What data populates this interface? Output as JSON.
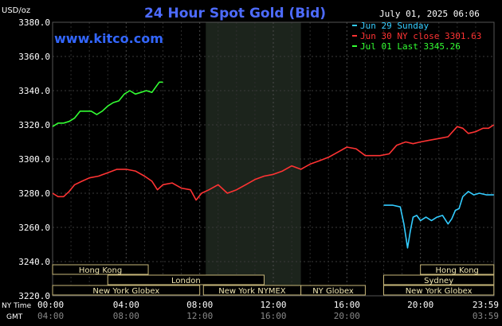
{
  "chart_data": {
    "type": "line",
    "title": "24 Hour Spot Gold (Bid)",
    "watermark": "www.kitco.com",
    "timestamp": "July 01, 2025 06:06",
    "ylabel": "USD/oz",
    "ylim": [
      3220,
      3380
    ],
    "yticks": [
      "3380.0",
      "3360.0",
      "3340.0",
      "3320.0",
      "3300.0",
      "3280.0",
      "3260.0",
      "3240.0",
      "3220.0"
    ],
    "xlim_hours": [
      0,
      24
    ],
    "xticks_ny": [
      "00:00",
      "04:00",
      "08:00",
      "12:00",
      "16:00",
      "20:00",
      "23:59"
    ],
    "xticks_gmt": [
      "04:00",
      "08:00",
      "12:00",
      "16:00",
      "20:00",
      "",
      "03:59"
    ],
    "ny_time_label": "NY Time",
    "gmt_label": "GMT",
    "grid": true,
    "shaded_hours": [
      8.33,
      13.5
    ],
    "legend": [
      {
        "label": "Jun 29 Sunday",
        "color": "#33ccff"
      },
      {
        "label": "Jun 30 NY close 3301.63",
        "color": "#ff3333"
      },
      {
        "label": "Jul 01 Last 3345.26",
        "color": "#33ff33"
      }
    ],
    "series": [
      {
        "name": "Jun 29 Sunday",
        "color": "#33ccff",
        "x": [
          18.0,
          18.5,
          18.9,
          19.1,
          19.3,
          19.45,
          19.6,
          19.8,
          20.0,
          20.3,
          20.6,
          20.9,
          21.2,
          21.5,
          21.7,
          21.9,
          22.1,
          22.3,
          22.6,
          22.9,
          23.2,
          23.6,
          23.99
        ],
        "values": [
          3273,
          3273,
          3272,
          3262,
          3248,
          3258,
          3266,
          3267,
          3264,
          3266,
          3264,
          3266,
          3267,
          3262,
          3265,
          3270,
          3271,
          3278,
          3281,
          3279,
          3280,
          3279,
          3279
        ]
      },
      {
        "name": "Jun 30 NY close 3301.63",
        "color": "#ff3333",
        "x": [
          0,
          0.3,
          0.6,
          0.9,
          1.2,
          1.6,
          2.0,
          2.5,
          3.0,
          3.5,
          4.0,
          4.5,
          5.0,
          5.4,
          5.7,
          6.0,
          6.5,
          7.0,
          7.5,
          7.8,
          8.1,
          8.5,
          9.0,
          9.5,
          10.0,
          10.5,
          11.0,
          11.5,
          12.0,
          12.5,
          13.0,
          13.5,
          14.0,
          14.5,
          15.0,
          15.5,
          16.0,
          16.5,
          17.0,
          17.4,
          17.8,
          18.3,
          18.7,
          19.2,
          19.6,
          20.0,
          20.5,
          21.0,
          21.5,
          22.0,
          22.3,
          22.6,
          23.0,
          23.4,
          23.7,
          23.99
        ],
        "values": [
          3280,
          3278,
          3278,
          3281,
          3285,
          3287,
          3289,
          3290,
          3292,
          3294,
          3294,
          3293,
          3290,
          3287,
          3282,
          3285,
          3286,
          3283,
          3282,
          3276,
          3280,
          3282,
          3285,
          3280,
          3282,
          3285,
          3288,
          3290,
          3291,
          3293,
          3296,
          3294,
          3297,
          3299,
          3301,
          3304,
          3307,
          3306,
          3302,
          3302,
          3302,
          3303,
          3308,
          3310,
          3309,
          3310,
          3311,
          3312,
          3313,
          3319,
          3318,
          3315,
          3316,
          3318,
          3318,
          3320
        ]
      },
      {
        "name": "Jul 01 Last 3345.26",
        "color": "#33ff33",
        "x": [
          0,
          0.3,
          0.6,
          0.9,
          1.2,
          1.5,
          1.8,
          2.1,
          2.4,
          2.7,
          3.0,
          3.3,
          3.6,
          3.9,
          4.2,
          4.5,
          4.8,
          5.1,
          5.4,
          5.6,
          5.8,
          6.0
        ],
        "values": [
          3319,
          3321,
          3321,
          3322,
          3324,
          3328,
          3328,
          3328,
          3326,
          3328,
          3331,
          3333,
          3334,
          3338,
          3340,
          3338,
          3339,
          3340,
          3339,
          3342,
          3345,
          3345
        ]
      }
    ]
  },
  "sessions": [
    {
      "label": "Hong Kong",
      "start": 0,
      "end": 5.2,
      "row": 0
    },
    {
      "label": "London",
      "start": 3.0,
      "end": 11.5,
      "row": 1
    },
    {
      "label": "New York Globex",
      "start": 0,
      "end": 8.0,
      "row": 2
    },
    {
      "label": "New York NYMEX",
      "start": 8.2,
      "end": 13.5,
      "row": 2
    },
    {
      "label": "NY Globex",
      "start": 13.5,
      "end": 17.0,
      "row": 2
    },
    {
      "label": "Hong Kong",
      "start": 20.0,
      "end": 23.99,
      "row": 0
    },
    {
      "label": "Sydney",
      "start": 18.0,
      "end": 23.99,
      "row": 1
    },
    {
      "label": "New York Globex",
      "start": 18.0,
      "end": 23.99,
      "row": 2
    }
  ]
}
